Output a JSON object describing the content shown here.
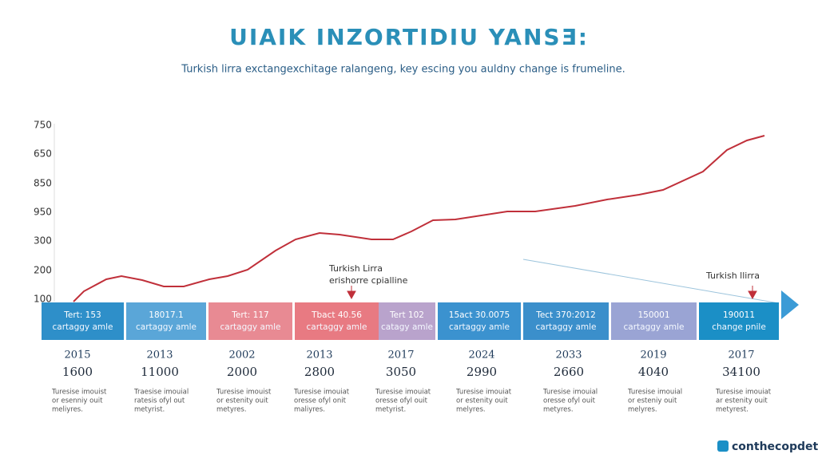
{
  "title": "UIAIK INZORTIDIU YANSƎ:",
  "subtitle": "Turkish lirra exctangexchitage ralangeng, key escing you auldny change is frumeline.",
  "axis_labels": [
    "750",
    "650",
    "850",
    "950",
    "300",
    "200",
    "100"
  ],
  "annotations": [
    {
      "lines": [
        "Turkish Lirra",
        "erishorre cpialline"
      ]
    },
    {
      "lines": [
        "Turkish llirra"
      ]
    }
  ],
  "timeline": [
    {
      "lines": [
        "Tert: 153",
        "cartaggy amle"
      ]
    },
    {
      "lines": [
        "18017.1",
        "cartaggy amle"
      ]
    },
    {
      "lines": [
        "Tert: 117",
        "cartaggy amle"
      ]
    },
    {
      "lines": [
        "Tbact 40.56",
        "cartaggy amle"
      ]
    },
    {
      "lines": [
        "Tert 102",
        "catagy amle"
      ]
    },
    {
      "lines": [
        "15act 30.0075",
        "cartaggy amle"
      ]
    },
    {
      "lines": [
        "Tect 370:2012",
        "cartaggy amle"
      ]
    },
    {
      "lines": [
        "150001",
        "cartaggy amle"
      ]
    },
    {
      "lines": [
        "190011",
        "change pnile"
      ]
    }
  ],
  "columns": [
    {
      "year": "2015",
      "value": "1600",
      "desc": [
        "Turesise imouist",
        "or esenniy ouit",
        "meliyres."
      ]
    },
    {
      "year": "2013",
      "value": "11000",
      "desc": [
        "Traesise imouial",
        "ratesis ofyl out",
        "metyrist."
      ]
    },
    {
      "year": "2002",
      "value": "2000",
      "desc": [
        "Turesise imouist",
        "or estenity ouit",
        "metyres."
      ]
    },
    {
      "year": "2013",
      "value": "2800",
      "desc": [
        "Turesise imouiat",
        "oresse ofyl onit",
        "maliyres."
      ]
    },
    {
      "year": "2017",
      "value": "3050",
      "desc": [
        "Turesise imouiat",
        "oresse ofyl ouit",
        "metyrist."
      ]
    },
    {
      "year": "2024",
      "value": "2990",
      "desc": [
        "Turesise imouiat",
        "or estenity ouit",
        "melyres."
      ]
    },
    {
      "year": "2033",
      "value": "2660",
      "desc": [
        "Turesise imouial",
        "oresse ofyl ouit",
        "metyres."
      ]
    },
    {
      "year": "2019",
      "value": "4040",
      "desc": [
        "Turesise imouial",
        "or esteniy ouit",
        "melyres."
      ]
    },
    {
      "year": "2017",
      "value": "34100",
      "desc": [
        "Turesise imouiat",
        "ar estenity ouit",
        "metyrest."
      ]
    }
  ],
  "brand": "conthecopdet"
}
